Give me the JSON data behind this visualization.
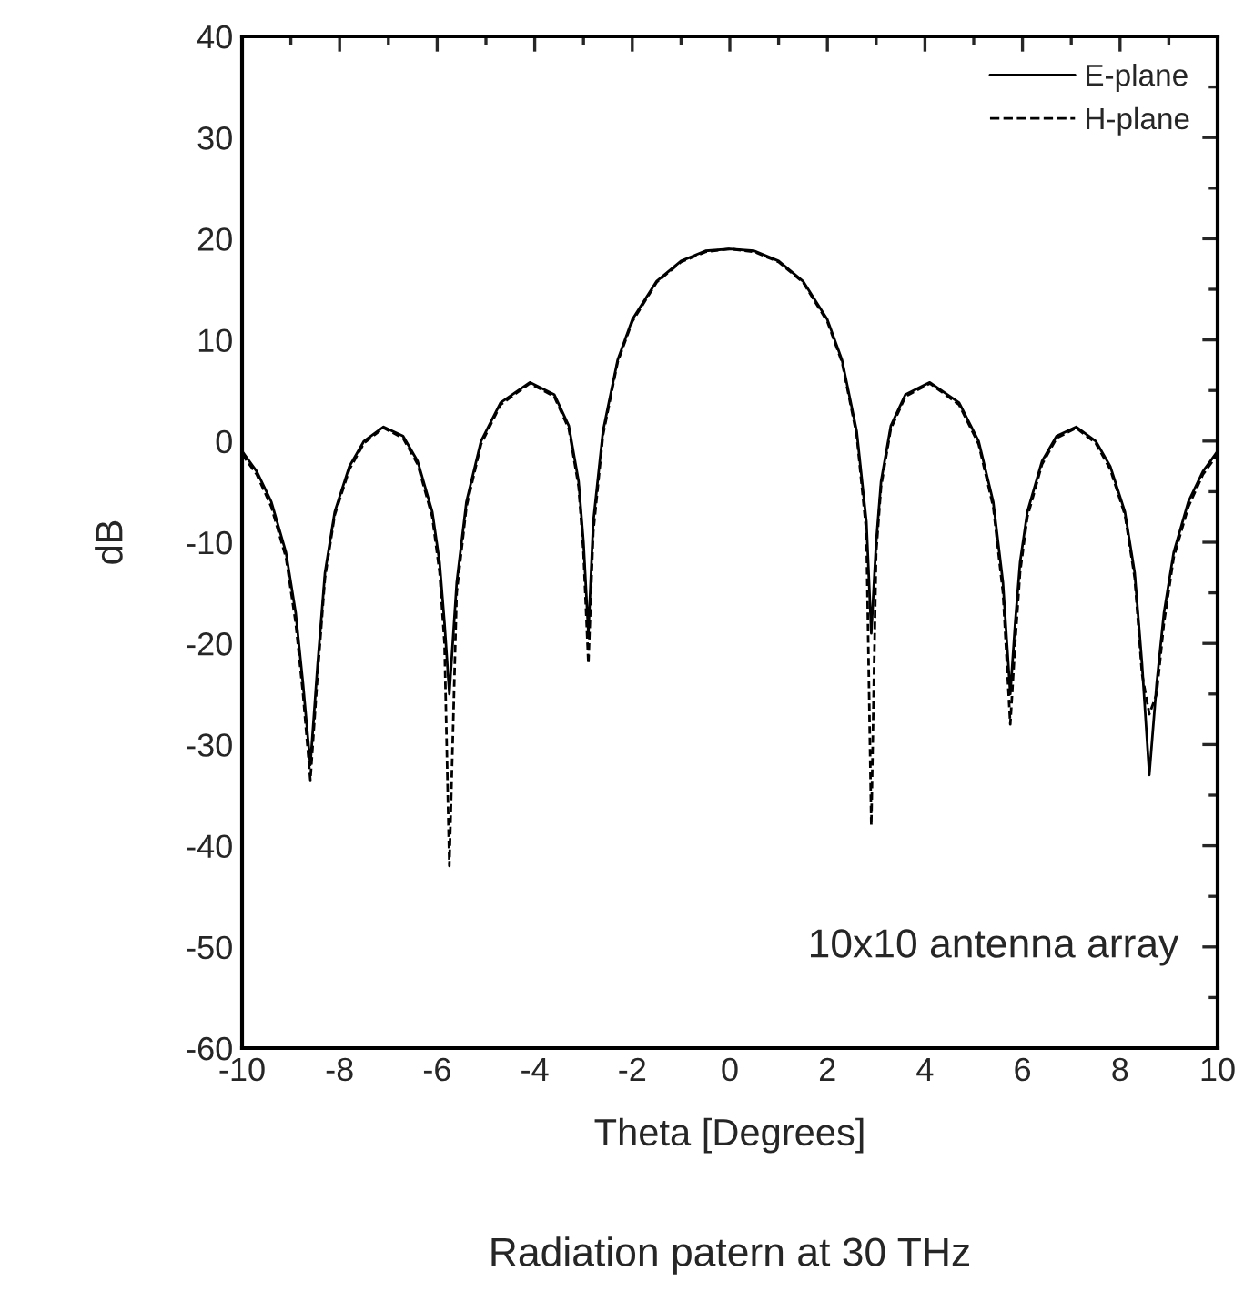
{
  "chart_data": {
    "type": "line",
    "xlabel": "Theta [Degrees]",
    "ylabel": "dB",
    "xlim": [
      -10,
      10
    ],
    "ylim": [
      -60,
      40
    ],
    "xticks": [
      -10,
      -8,
      -6,
      -4,
      -2,
      0,
      2,
      4,
      6,
      8,
      10
    ],
    "yticks": [
      -60,
      -50,
      -40,
      -30,
      -20,
      -10,
      0,
      10,
      20,
      30,
      40
    ],
    "grid": false,
    "legend": "top right",
    "x": [
      -10,
      -9.7,
      -9.4,
      -9.1,
      -8.9,
      -8.75,
      -8.6,
      -8.45,
      -8.3,
      -8.1,
      -7.8,
      -7.5,
      -7.1,
      -6.7,
      -6.4,
      -6.1,
      -5.95,
      -5.85,
      -5.75,
      -5.6,
      -5.4,
      -5.1,
      -4.7,
      -4.1,
      -3.6,
      -3.3,
      -3.1,
      -3.0,
      -2.9,
      -2.8,
      -2.6,
      -2.3,
      -2,
      -1.5,
      -1,
      -0.5,
      0,
      0.5,
      1,
      1.5,
      2,
      2.3,
      2.6,
      2.8,
      2.9,
      3.0,
      3.1,
      3.3,
      3.6,
      4.1,
      4.7,
      5.1,
      5.4,
      5.6,
      5.75,
      5.85,
      5.95,
      6.1,
      6.4,
      6.7,
      7.1,
      7.5,
      7.8,
      8.1,
      8.3,
      8.45,
      8.6,
      8.75,
      8.9,
      9.1,
      9.4,
      9.7,
      10
    ],
    "series": [
      {
        "name": "E-plane",
        "color": "#000000",
        "line_style": "solid",
        "values": [
          -1,
          -3,
          -6,
          -11,
          -17,
          -24,
          -32,
          -22,
          -13,
          -7,
          -2.5,
          0,
          1.4,
          0.5,
          -2,
          -7,
          -12,
          -18,
          -25,
          -14,
          -6,
          0,
          3.8,
          5.8,
          4.6,
          1.5,
          -4,
          -10,
          -19,
          -8,
          1,
          8,
          12,
          15.8,
          17.8,
          18.8,
          19,
          18.8,
          17.8,
          15.8,
          12,
          8,
          1,
          -8,
          -19,
          -10,
          -4,
          1.5,
          4.6,
          5.8,
          3.8,
          0,
          -6,
          -14,
          -25,
          -18,
          -12,
          -7,
          -2,
          0.5,
          1.4,
          0,
          -2.5,
          -7,
          -13,
          -22,
          -33,
          -24,
          -17,
          -11,
          -6,
          -3,
          -1
        ]
      },
      {
        "name": "H-plane",
        "color": "#000000",
        "line_style": "dashed",
        "values": [
          -1.3,
          -3.3,
          -6.5,
          -11.5,
          -18,
          -25,
          -33.5,
          -23,
          -13.5,
          -7.3,
          -2.8,
          -0.2,
          1.3,
          0.3,
          -2.3,
          -7.5,
          -13,
          -20,
          -42,
          -15,
          -6.5,
          -0.3,
          3.6,
          5.7,
          4.4,
          1.2,
          -4.5,
          -11,
          -22,
          -9,
          0.6,
          7.8,
          11.8,
          15.7,
          17.7,
          18.7,
          19,
          18.7,
          17.7,
          15.7,
          11.8,
          7.8,
          0.6,
          -9,
          -38,
          -11,
          -4.5,
          1.2,
          4.4,
          5.7,
          3.6,
          -0.3,
          -6.5,
          -15,
          -28,
          -20,
          -13,
          -7.5,
          -2.3,
          0.3,
          1.3,
          -0.2,
          -2.8,
          -7.3,
          -13.5,
          -23,
          -27,
          -25,
          -18,
          -11.5,
          -6.5,
          -3.3,
          -1.3
        ]
      }
    ],
    "annotations": [
      "10x10 antenna array",
      "Radiation patern at 30 THz"
    ]
  }
}
